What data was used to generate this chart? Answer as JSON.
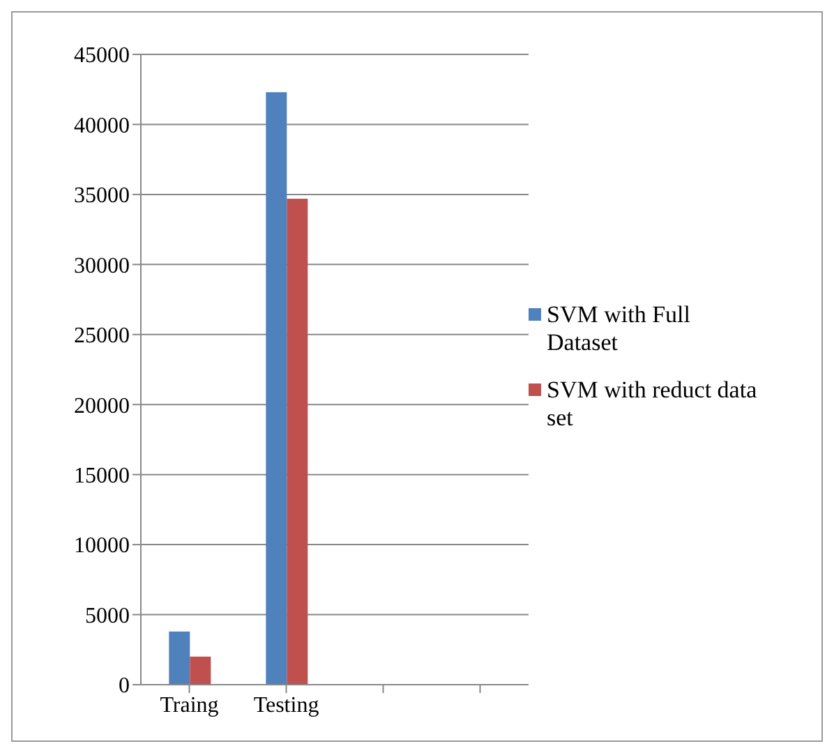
{
  "chart_data": {
    "type": "bar",
    "categories": [
      "Traing",
      "Testing",
      null,
      null
    ],
    "series": [
      {
        "name": "SVM with Full Dataset",
        "color": "#4f81bd",
        "values": [
          3800,
          42300,
          null,
          null
        ]
      },
      {
        "name": "SVM with reduct data set",
        "color": "#c0504d",
        "values": [
          2000,
          34700,
          null,
          null
        ]
      }
    ],
    "ylim": [
      0,
      45000
    ],
    "yticks": [
      0,
      5000,
      10000,
      15000,
      20000,
      25000,
      30000,
      35000,
      40000,
      45000
    ],
    "grid": "y",
    "legend": "right"
  }
}
